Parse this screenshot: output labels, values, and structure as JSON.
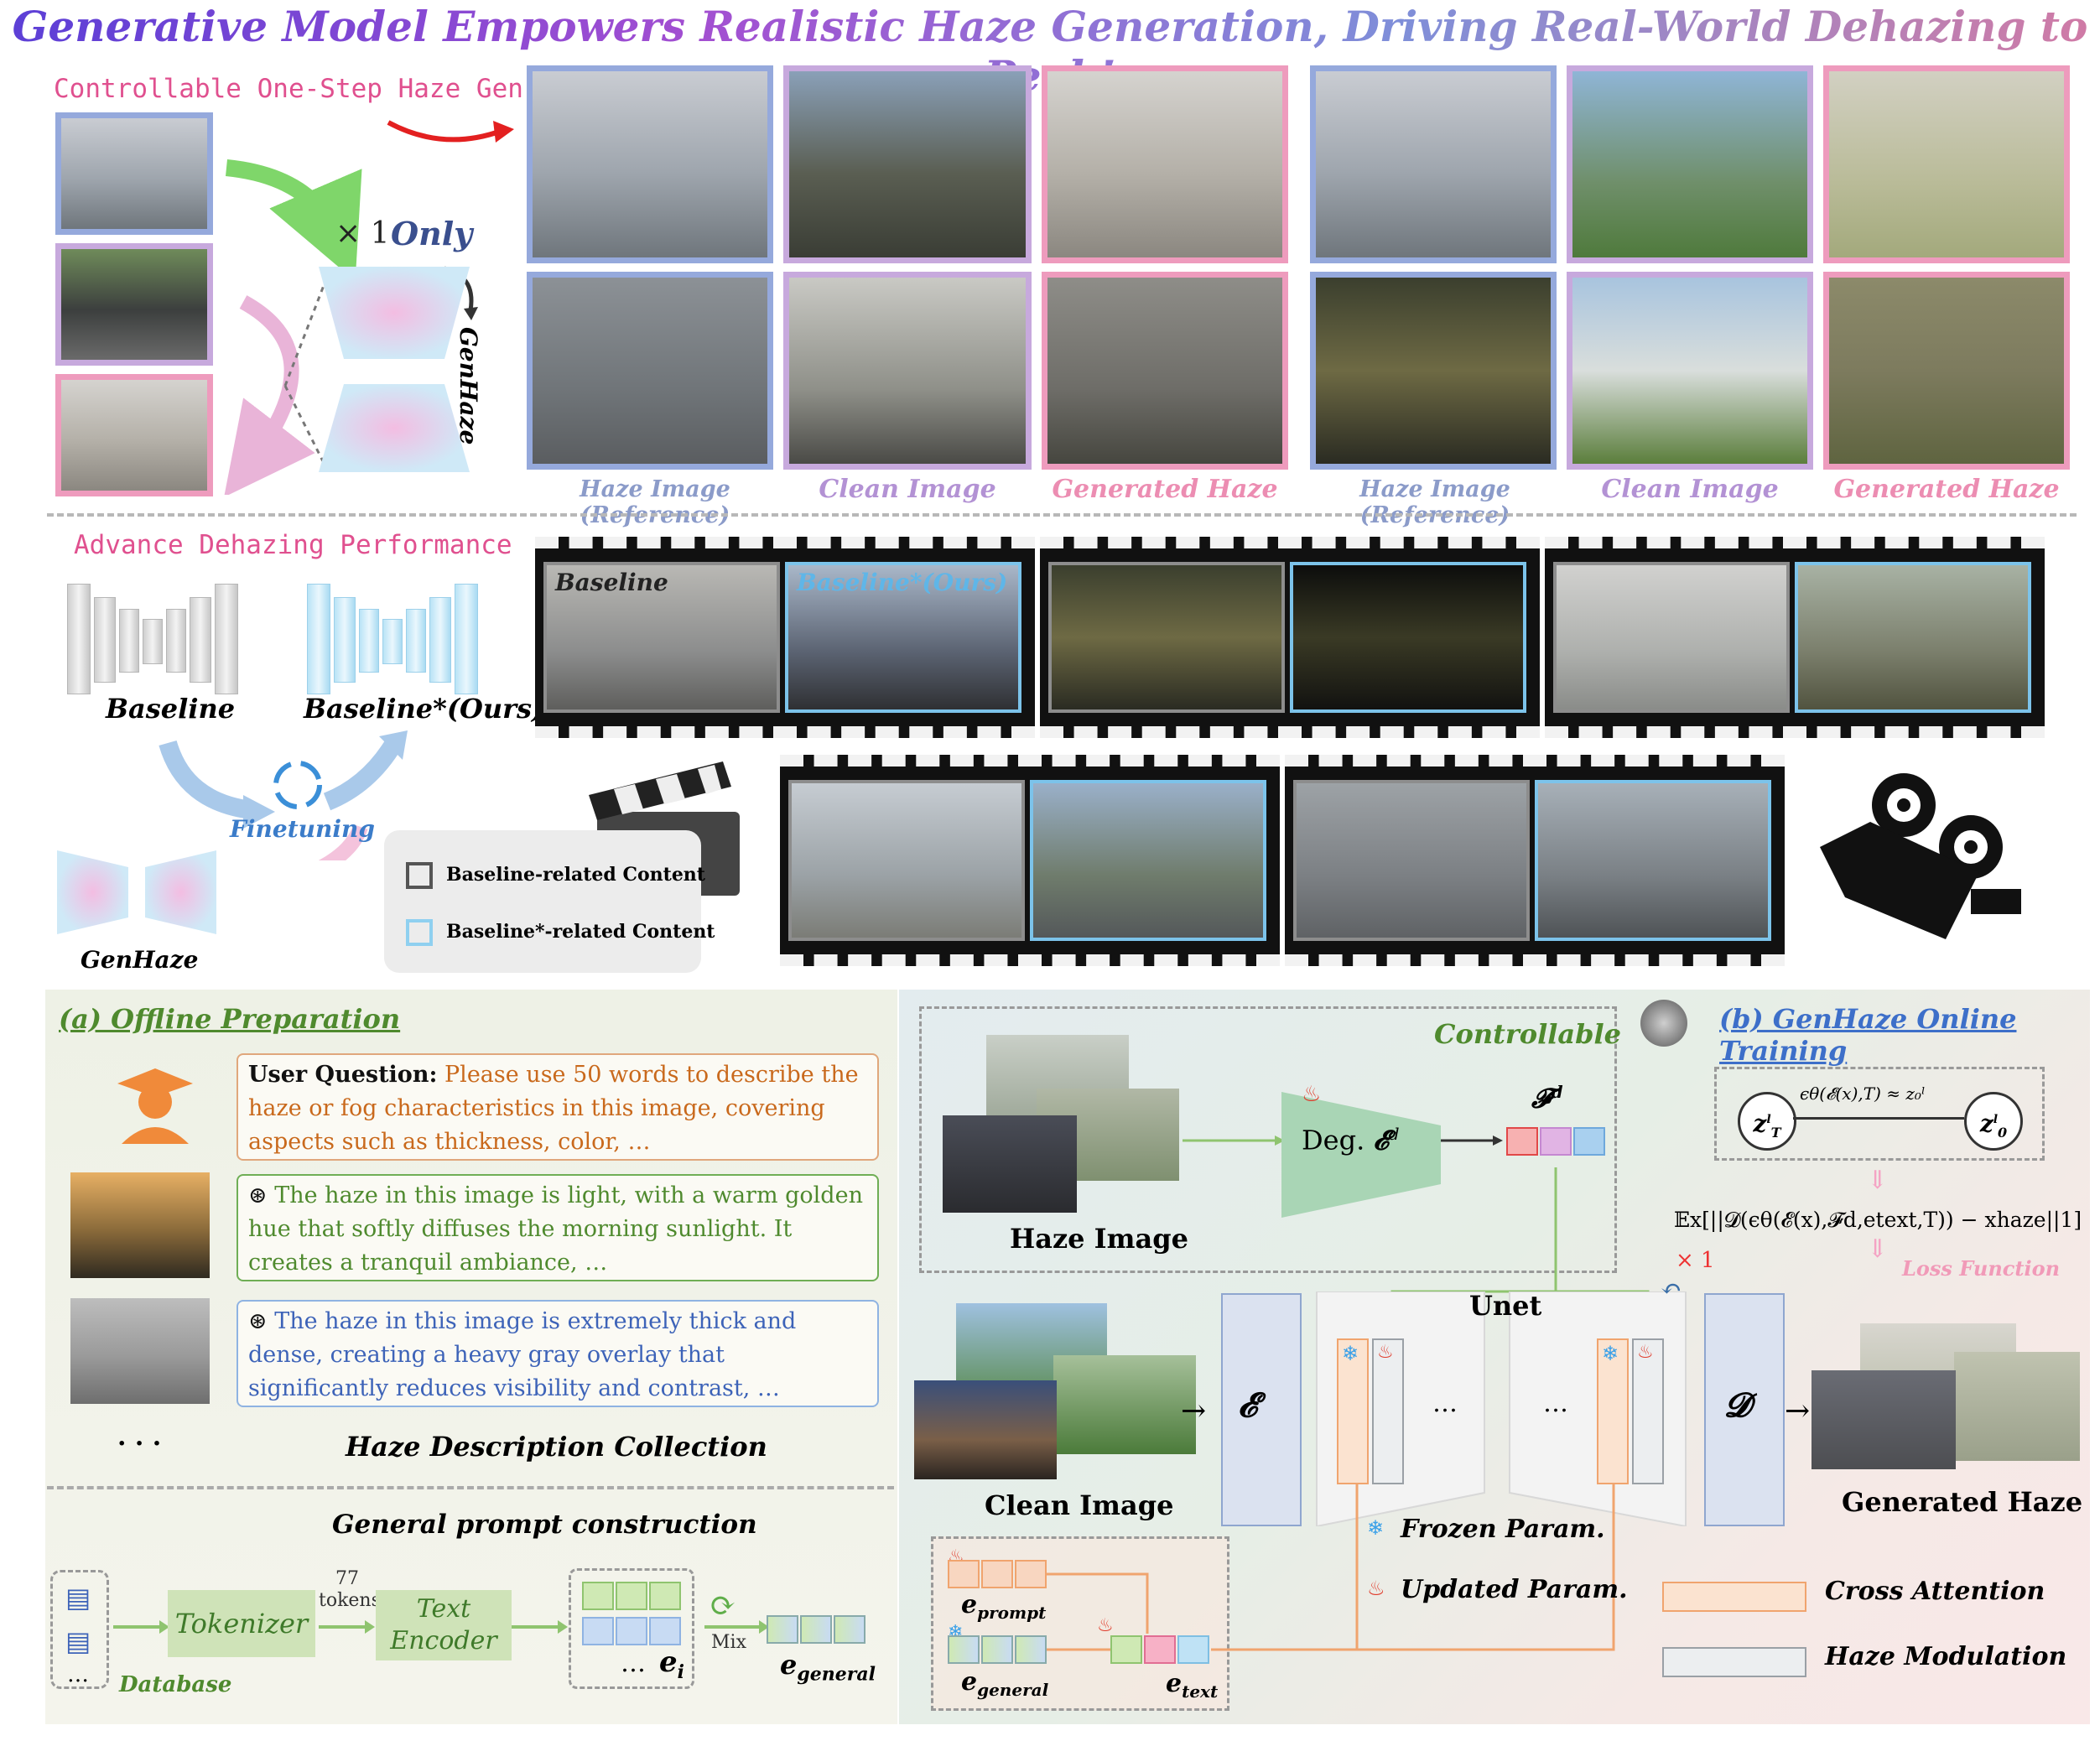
{
  "title": "Generative Model Empowers Realistic Haze Generation, Driving Real-World Dehazing to Peak!",
  "top": {
    "section_label": "Controllable One-Step Haze Gen.",
    "times_one": "× 1",
    "only": "Only",
    "genhaze_vertical": "GenHaze",
    "captions_left": [
      "Haze Image (Reference)",
      "Clean Image",
      "Generated Haze"
    ],
    "captions_right": [
      "Haze Image (Reference)",
      "Clean Image",
      "Generated Haze"
    ]
  },
  "middle": {
    "section_label": "Advance Dehazing Performance",
    "baseline": "Baseline",
    "baseline_ours": "Baseline*(Ours)",
    "finetuning": "Finetuning",
    "genhaze": "GenHaze",
    "film_label_left": "Baseline",
    "film_label_right": "Baseline*(Ours)",
    "legend": [
      {
        "label": "Baseline-related Content",
        "color": "#555555"
      },
      {
        "label": "Baseline*-related Content",
        "color": "#8fd0f0"
      }
    ]
  },
  "offline": {
    "title": "(a) Offline Preparation",
    "q_label": "User Question:",
    "q_text": "Please use 50 words to describe the haze or fog characteristics in this image, covering aspects such as thickness, color, …",
    "a1": "The haze in this image is light, with a warm golden hue that softly diffuses the morning sunlight. It creates a tranquil ambiance, …",
    "a2": "The haze in this image is extremely thick and dense, creating a heavy gray overlay that significantly reduces visibility and contrast, …",
    "ellipsis": "· · ·",
    "collection": "Haze Description Collection",
    "general_prompt": "General prompt construction",
    "tokenizer": "Tokenizer",
    "tokens_num": "77",
    "tokens": "tokens",
    "text_encoder_1": "Text",
    "text_encoder_2": "Encoder",
    "database": "Database",
    "db_ellipsis": "…",
    "e_i_dots": "…",
    "e_i": "e",
    "e_i_sub": "i",
    "mix": "Mix",
    "e_general": "e",
    "e_general_sub": "general"
  },
  "online": {
    "title": "(b) GenHaze Online Training",
    "controllable": "Controllable",
    "deg": "Deg.",
    "deg_symbol": "𝓔",
    "deg_sup": "d",
    "fd": "𝓕",
    "fd_sup": "d",
    "haze_image": "Haze Image",
    "clean_image": "Clean Image",
    "encoder": "𝓔",
    "decoder": "𝓓",
    "unet": "Unet",
    "dots1": "…",
    "dots2": "…",
    "generated_haze": "Generated Haze",
    "zt": "z",
    "zt_sup": "l",
    "zt_sub": "T",
    "z0": "z",
    "z0_sup": "l",
    "z0_sub": "0",
    "approx": "ϵθ(𝓔(x),T) ≈ z₀ˡ",
    "loss_formula": "𝔼x[||𝓓(ϵθ(𝓔(x),𝓕d,etext,T)) − xhaze||1]",
    "times1": "× 1",
    "loss_function": "Loss Function",
    "frozen": "Frozen Param.",
    "updated": "Updated Param.",
    "cross_attention": "Cross Attention",
    "haze_modulation": "Haze Modulation",
    "e_prompt": "e",
    "e_prompt_sub": "prompt",
    "e_general": "e",
    "e_general_sub": "general",
    "e_text": "e",
    "e_text_sub": "text"
  },
  "colors": {
    "pink": "#e0508f",
    "blue_frame": "#95a9dc",
    "purple_frame": "#c7a9dd",
    "pink_frame": "#ee9bbd",
    "green_text": "#4f8a2e",
    "orange_text": "#c9691c",
    "blue_text": "#3d63b8",
    "cross_attention": "#f6c9a6",
    "haze_modulation": "#d9dde3"
  }
}
